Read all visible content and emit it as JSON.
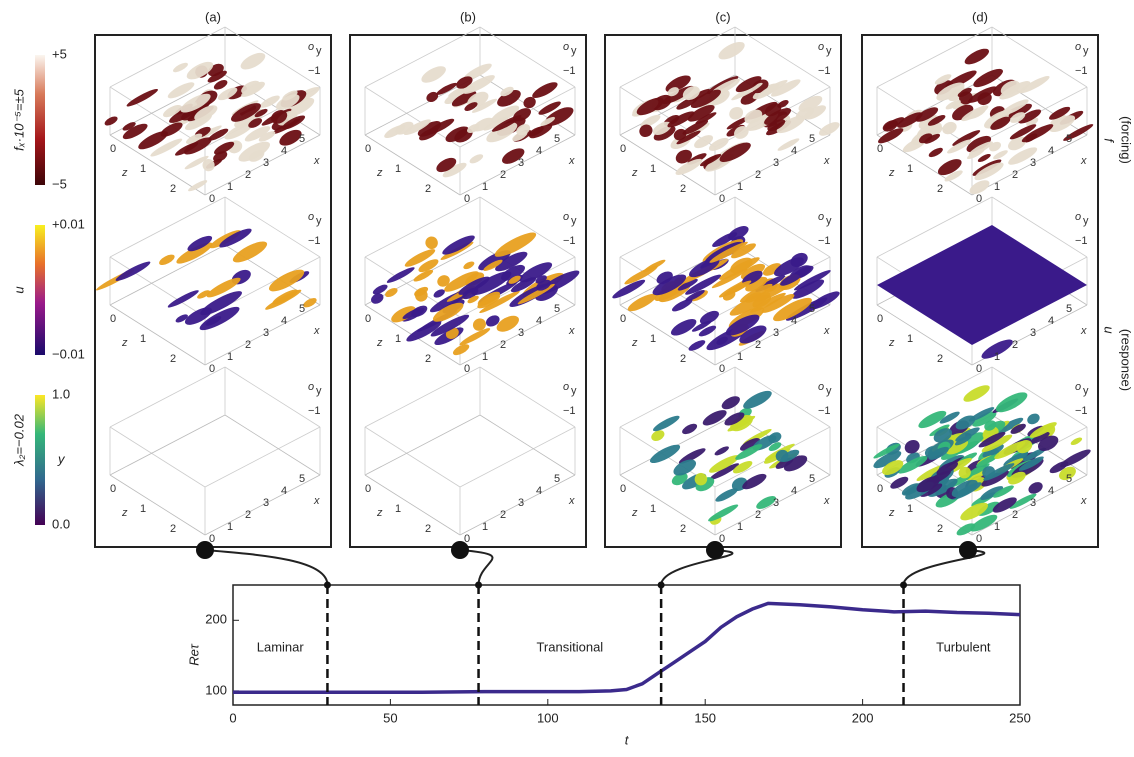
{
  "panels": [
    {
      "label": "(a)"
    },
    {
      "label": "(b)"
    },
    {
      "label": "(c)"
    },
    {
      "label": "(d)"
    }
  ],
  "cube_labels": {
    "z_ticks": [
      "0",
      "1",
      "2"
    ],
    "z": "z",
    "x_ticks": [
      "0",
      "1",
      "2",
      "3",
      "4",
      "5"
    ],
    "x": "x",
    "y": "o",
    "y_sub": "y",
    "y_tick": "−1"
  },
  "colorbars": [
    {
      "top": "+5",
      "bottom": "−5",
      "label": "fₓ·10⁻⁵=±5"
    },
    {
      "top": "+0.01",
      "bottom": "−0.01",
      "label": "u"
    },
    {
      "top": "1.0",
      "bottom": "0.0",
      "label": "λ₂=−0.02",
      "label2": "y"
    }
  ],
  "side_labels": {
    "forcing": "f",
    "forcing_note": "(forcing)",
    "response": "u",
    "response_note": "(response)"
  },
  "chart_data": {
    "type": "line",
    "ylabel": "Reτ",
    "xlabel": "t",
    "x": [
      0,
      20,
      40,
      60,
      80,
      100,
      110,
      120,
      125,
      130,
      135,
      140,
      145,
      150,
      155,
      160,
      165,
      170,
      180,
      190,
      200,
      210,
      220,
      230,
      240,
      250
    ],
    "series": [
      {
        "name": "Reτ",
        "color": "#3b2a8c",
        "values": [
          98,
          98,
          98,
          98,
          99,
          99,
          99,
          100,
          102,
          110,
          125,
          140,
          155,
          170,
          190,
          205,
          216,
          224,
          222,
          219,
          215,
          212,
          213,
          211,
          210,
          208
        ]
      }
    ],
    "xlim": [
      0,
      250
    ],
    "ylim": [
      80,
      250
    ],
    "xticks": [
      0,
      50,
      100,
      150,
      200,
      250
    ],
    "yticks": [
      100,
      200
    ],
    "events": [
      30,
      78,
      136,
      213
    ],
    "regions": [
      {
        "text": "Laminar",
        "x": 15
      },
      {
        "text": "Transitional",
        "x": 107
      },
      {
        "text": "Turbulent",
        "x": 232
      }
    ]
  }
}
